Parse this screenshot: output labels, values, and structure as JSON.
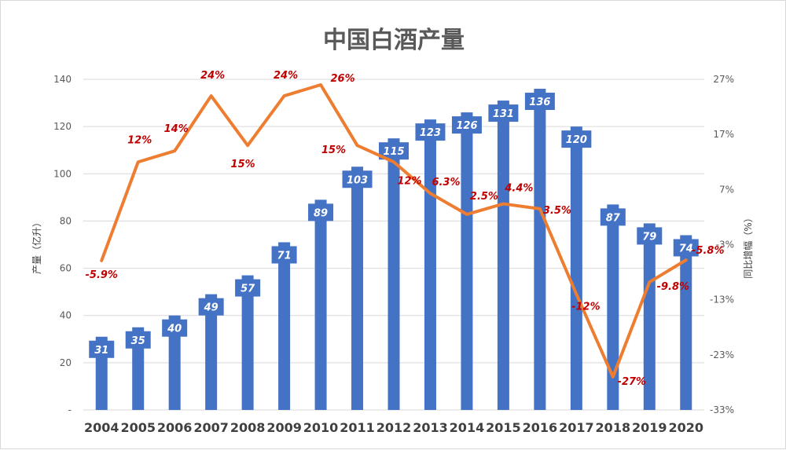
{
  "chart_data": {
    "type": "bar+line",
    "title": "中国白酒产量",
    "categories": [
      "2004",
      "2005",
      "2006",
      "2007",
      "2008",
      "2009",
      "2010",
      "2011",
      "2012",
      "2013",
      "2014",
      "2015",
      "2016",
      "2017",
      "2018",
      "2019",
      "2020"
    ],
    "series": [
      {
        "name": "产量",
        "type": "bar",
        "axis": "left",
        "values": [
          31,
          35,
          40,
          49,
          57,
          71,
          89,
          103,
          115,
          123,
          126,
          131,
          136,
          120,
          87,
          79,
          74
        ],
        "labels": [
          "31",
          "35",
          "40",
          "49",
          "57",
          "71",
          "89",
          "103",
          "115",
          "123",
          "126",
          "131",
          "136",
          "120",
          "87",
          "79",
          "74"
        ]
      },
      {
        "name": "同比增幅",
        "type": "line",
        "axis": "right",
        "values": [
          -5.9,
          12,
          14,
          24,
          15,
          24,
          26,
          15,
          12,
          6.3,
          2.5,
          4.4,
          3.5,
          -12,
          -27,
          -9.8,
          -5.8
        ],
        "labels": [
          "-5.9%",
          "12%",
          "14%",
          "24%",
          "15%",
          "24%",
          "26%",
          "15%",
          "12%",
          "6.3%",
          "2.5%",
          "4.4%",
          "3.5%",
          "-12%",
          "-27%",
          "-9.8%",
          "-5.8%"
        ]
      }
    ],
    "ylabel": "产量（亿升）",
    "y2label": "同比增幅（%）",
    "ylim": [
      0,
      140
    ],
    "y2lim": [
      -33,
      27
    ],
    "yticks": [
      "-",
      "20",
      "40",
      "60",
      "80",
      "100",
      "120",
      "140"
    ],
    "y2ticks": [
      "-33%",
      "-23%",
      "-13%",
      "-3%",
      "7%",
      "17%",
      "27%"
    ],
    "grid": true,
    "legend": "none"
  },
  "colors": {
    "bar": "#4472c4",
    "line": "#ed7d31",
    "line_label": "#c00000",
    "grid": "#d9d9d9"
  }
}
